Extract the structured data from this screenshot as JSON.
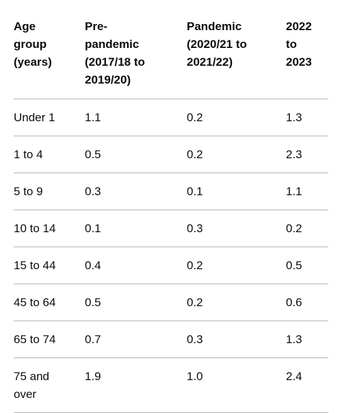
{
  "table": {
    "header": [
      "Age group (years)",
      "Pre-pandemic (2017/18 to 2019/20)",
      "Pandemic (2020/21 to 2021/22)",
      "2022 to 2023"
    ],
    "rows": [
      [
        "Under 1",
        "1.1",
        "0.2",
        "1.3"
      ],
      [
        "1 to 4",
        "0.5",
        "0.2",
        "2.3"
      ],
      [
        "5 to 9",
        "0.3",
        "0.1",
        "1.1"
      ],
      [
        "10 to 14",
        "0.1",
        "0.3",
        "0.2"
      ],
      [
        "15 to 44",
        "0.4",
        "0.2",
        "0.5"
      ],
      [
        "45 to 64",
        "0.5",
        "0.2",
        "0.6"
      ],
      [
        "65 to 74",
        "0.7",
        "0.3",
        "1.3"
      ],
      [
        "75 and over",
        "1.9",
        "1.0",
        "2.4"
      ]
    ]
  }
}
